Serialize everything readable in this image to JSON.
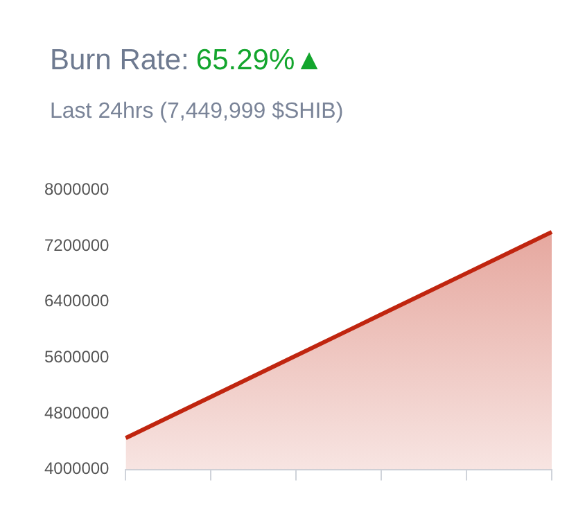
{
  "chart_data": {
    "type": "area",
    "title": "Burn Rate:",
    "subtitle": "Last 24hrs (7,449,999 $SHIB)",
    "annotations": [
      "65.29%▲"
    ],
    "categories": [
      null,
      null,
      null,
      null,
      null,
      null
    ],
    "series": [
      {
        "color": "#c0250f",
        "values": [
          4450000,
          5040000,
          5630000,
          6220000,
          6810000,
          7400000
        ]
      }
    ],
    "ylim": [
      4000000,
      8000000
    ],
    "yticks": [
      4000000,
      4800000,
      5600000,
      6400000,
      7200000,
      8000000
    ],
    "grid": false,
    "legend": false,
    "tick_labels": "y",
    "marker": "none"
  }
}
